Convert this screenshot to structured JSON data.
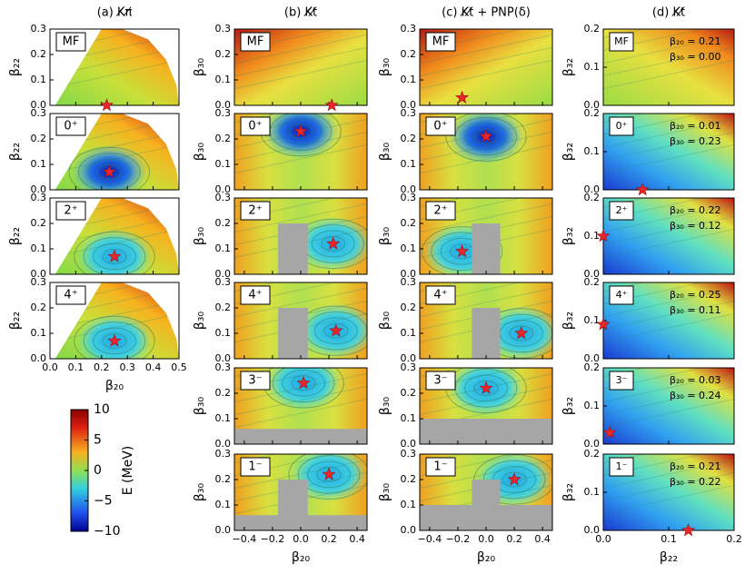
{
  "column_titles": [
    "(a) K̸π̸",
    "(b) K̸t̸",
    "(c) K̸t̸ + PNP(δ)",
    "(d) K̸t̸"
  ],
  "chart_data": [
    {
      "type": "contour",
      "label": "MF",
      "ylabel": "β₂₂",
      "xlim": [
        0,
        0.5
      ],
      "ylim": [
        0,
        0.3
      ],
      "xticks": [
        0,
        0.1,
        0.2,
        0.3,
        0.4,
        0.5
      ],
      "yticks": [
        {
          "value": 0,
          "label": "0.0"
        },
        0.1,
        0.2,
        0.3
      ],
      "star": {
        "x": 0.22,
        "y": 0
      }
    },
    {
      "type": "contour",
      "label": "0⁺",
      "ylabel": "β₂₂",
      "xlim": [
        0,
        0.5
      ],
      "ylim": [
        0,
        0.3
      ],
      "xticks": [
        0,
        0.1,
        0.2,
        0.3,
        0.4,
        0.5
      ],
      "yticks": [
        {
          "value": 0,
          "label": "0.0"
        },
        0.1,
        0.2,
        0.3
      ],
      "star": {
        "x": 0.23,
        "y": 0.07
      }
    },
    {
      "type": "contour",
      "label": "2⁺",
      "ylabel": "β₂₂",
      "xlim": [
        0,
        0.5
      ],
      "ylim": [
        0,
        0.3
      ],
      "xticks": [
        0,
        0.1,
        0.2,
        0.3,
        0.4,
        0.5
      ],
      "yticks": [
        {
          "value": 0,
          "label": "0.0"
        },
        0.1,
        0.2,
        0.3
      ],
      "star": {
        "x": 0.25,
        "y": 0.07
      }
    },
    {
      "type": "contour",
      "label": "4⁺",
      "ylabel": "β₂₂",
      "xlabel": "β₂₀",
      "xlim": [
        0,
        0.5
      ],
      "ylim": [
        0,
        0.3
      ],
      "xticks": [
        {
          "value": 0,
          "label": "0.0"
        },
        0.1,
        0.2,
        0.3,
        0.4,
        0.5
      ],
      "yticks": [
        {
          "value": 0,
          "label": "0.0"
        },
        0.1,
        0.2,
        0.3
      ],
      "star": {
        "x": 0.25,
        "y": 0.07
      }
    },
    {
      "type": "contour",
      "label": "MF",
      "ylabel": "β₃₀",
      "xlim": [
        -0.47,
        0.47
      ],
      "ylim": [
        0,
        0.3
      ],
      "xticks": [
        -0.4,
        -0.2,
        0,
        0.2,
        0.4
      ],
      "yticks": [
        {
          "value": 0,
          "label": "0.0"
        },
        0.1,
        0.2,
        0.3
      ],
      "star": {
        "x": 0.22,
        "y": 0
      }
    },
    {
      "type": "contour",
      "label": "0⁺",
      "ylabel": "β₃₀",
      "xlim": [
        -0.47,
        0.47
      ],
      "ylim": [
        0,
        0.3
      ],
      "xticks": [
        -0.4,
        -0.2,
        0,
        0.2,
        0.4
      ],
      "yticks": [
        {
          "value": 0,
          "label": "0.0"
        },
        0.1,
        0.2,
        0.3
      ],
      "star": {
        "x": 0,
        "y": 0.23
      }
    },
    {
      "type": "contour",
      "label": "2⁺",
      "ylabel": "β₃₀",
      "xlim": [
        -0.47,
        0.47
      ],
      "ylim": [
        0,
        0.3
      ],
      "xticks": [
        -0.4,
        -0.2,
        0,
        0.2,
        0.4
      ],
      "yticks": [
        {
          "value": 0,
          "label": "0.0"
        },
        0.1,
        0.2,
        0.3
      ],
      "star": {
        "x": 0.23,
        "y": 0.12
      }
    },
    {
      "type": "contour",
      "label": "4⁺",
      "ylabel": "β₃₀",
      "xlim": [
        -0.47,
        0.47
      ],
      "ylim": [
        0,
        0.3
      ],
      "xticks": [
        -0.4,
        -0.2,
        0,
        0.2,
        0.4
      ],
      "yticks": [
        {
          "value": 0,
          "label": "0.0"
        },
        0.1,
        0.2,
        0.3
      ],
      "star": {
        "x": 0.25,
        "y": 0.11
      }
    },
    {
      "type": "contour",
      "label": "3⁻",
      "ylabel": "β₃₀",
      "xlim": [
        -0.47,
        0.47
      ],
      "ylim": [
        0,
        0.3
      ],
      "xticks": [
        -0.4,
        -0.2,
        0,
        0.2,
        0.4
      ],
      "yticks": [
        {
          "value": 0,
          "label": "0.0"
        },
        0.1,
        0.2,
        0.3
      ],
      "star": {
        "x": 0.02,
        "y": 0.24
      }
    },
    {
      "type": "contour",
      "label": "1⁻",
      "ylabel": "β₃₀",
      "xlabel": "β₂₀",
      "xlim": [
        -0.47,
        0.47
      ],
      "ylim": [
        0,
        0.3
      ],
      "xticks": [
        {
          "value": -0.4,
          "label": "−0.4"
        },
        {
          "value": -0.2,
          "label": "−0.2"
        },
        {
          "value": 0,
          "label": "0.0"
        },
        0.2,
        0.4
      ],
      "yticks": [
        {
          "value": 0,
          "label": "0.0"
        },
        0.1,
        0.2,
        0.3
      ],
      "star": {
        "x": 0.2,
        "y": 0.22
      }
    },
    {
      "type": "contour",
      "label": "MF",
      "ylabel": "β₃₀",
      "xlim": [
        -0.47,
        0.47
      ],
      "ylim": [
        0,
        0.3
      ],
      "xticks": [
        -0.4,
        -0.2,
        0,
        0.2,
        0.4
      ],
      "yticks": [
        {
          "value": 0,
          "label": "0.0"
        },
        0.1,
        0.2,
        0.3
      ],
      "star": {
        "x": -0.17,
        "y": 0.03
      }
    },
    {
      "type": "contour",
      "label": "0⁺",
      "ylabel": "β₃₀",
      "xlim": [
        -0.47,
        0.47
      ],
      "ylim": [
        0,
        0.3
      ],
      "xticks": [
        -0.4,
        -0.2,
        0,
        0.2,
        0.4
      ],
      "yticks": [
        {
          "value": 0,
          "label": "0.0"
        },
        0.1,
        0.2,
        0.3
      ],
      "star": {
        "x": 0,
        "y": 0.21
      }
    },
    {
      "type": "contour",
      "label": "2⁺",
      "ylabel": "β₃₀",
      "xlim": [
        -0.47,
        0.47
      ],
      "ylim": [
        0,
        0.3
      ],
      "xticks": [
        -0.4,
        -0.2,
        0,
        0.2,
        0.4
      ],
      "yticks": [
        {
          "value": 0,
          "label": "0.0"
        },
        0.1,
        0.2,
        0.3
      ],
      "star": {
        "x": -0.17,
        "y": 0.09
      }
    },
    {
      "type": "contour",
      "label": "4⁺",
      "ylabel": "β₃₀",
      "xlim": [
        -0.47,
        0.47
      ],
      "ylim": [
        0,
        0.3
      ],
      "xticks": [
        -0.4,
        -0.2,
        0,
        0.2,
        0.4
      ],
      "yticks": [
        {
          "value": 0,
          "label": "0.0"
        },
        0.1,
        0.2,
        0.3
      ],
      "star": {
        "x": 0.25,
        "y": 0.1
      }
    },
    {
      "type": "contour",
      "label": "3⁻",
      "ylabel": "β₃₀",
      "xlim": [
        -0.47,
        0.47
      ],
      "ylim": [
        0,
        0.3
      ],
      "xticks": [
        -0.4,
        -0.2,
        0,
        0.2,
        0.4
      ],
      "yticks": [
        {
          "value": 0,
          "label": "0.0"
        },
        0.1,
        0.2,
        0.3
      ],
      "star": {
        "x": 0,
        "y": 0.22
      }
    },
    {
      "type": "contour",
      "label": "1⁻",
      "ylabel": "β₃₀",
      "xlabel": "β₂₀",
      "xlim": [
        -0.47,
        0.47
      ],
      "ylim": [
        0,
        0.3
      ],
      "xticks": [
        {
          "value": -0.4,
          "label": "−0.4"
        },
        {
          "value": -0.2,
          "label": "−0.2"
        },
        {
          "value": 0,
          "label": "0.0"
        },
        0.2,
        0.4
      ],
      "yticks": [
        {
          "value": 0,
          "label": "0.0"
        },
        0.1,
        0.2,
        0.3
      ],
      "star": {
        "x": 0.2,
        "y": 0.2
      }
    },
    {
      "type": "contour",
      "label": "MF",
      "ylabel": "β₃₂",
      "annotations": [
        "β₂₀ = 0.21",
        "β₃₀ = 0.00"
      ],
      "xlim": [
        0,
        0.2
      ],
      "ylim": [
        0,
        0.2
      ],
      "xticks": [
        0,
        0.1,
        0.2
      ],
      "yticks": [
        {
          "value": 0,
          "label": "0.0"
        },
        0.1,
        0.2
      ]
    },
    {
      "type": "contour",
      "label": "0⁺",
      "ylabel": "β₃₂",
      "annotations": [
        "β₂₀ = 0.01",
        "β₃₀ = 0.23"
      ],
      "xlim": [
        0,
        0.2
      ],
      "ylim": [
        0,
        0.2
      ],
      "xticks": [
        0,
        0.1,
        0.2
      ],
      "yticks": [
        {
          "value": 0,
          "label": "0.0"
        },
        0.1,
        0.2
      ],
      "star": {
        "x": 0.06,
        "y": 0
      }
    },
    {
      "type": "contour",
      "label": "2⁺",
      "ylabel": "β₃₂",
      "annotations": [
        "β₂₀ = 0.22",
        "β₃₀ = 0.12"
      ],
      "xlim": [
        0,
        0.2
      ],
      "ylim": [
        0,
        0.2
      ],
      "xticks": [
        0,
        0.1,
        0.2
      ],
      "yticks": [
        {
          "value": 0,
          "label": "0.0"
        },
        0.1,
        0.2
      ],
      "star": {
        "x": 0,
        "y": 0.1
      }
    },
    {
      "type": "contour",
      "label": "4⁺",
      "ylabel": "β₃₂",
      "annotations": [
        "β₂₀ = 0.25",
        "β₃₀ = 0.11"
      ],
      "xlim": [
        0,
        0.2
      ],
      "ylim": [
        0,
        0.2
      ],
      "xticks": [
        0,
        0.1,
        0.2
      ],
      "yticks": [
        {
          "value": 0,
          "label": "0.0"
        },
        0.1,
        0.2
      ],
      "star": {
        "x": 0,
        "y": 0.09
      }
    },
    {
      "type": "contour",
      "label": "3⁻",
      "ylabel": "β₃₂",
      "annotations": [
        "β₂₀ = 0.03",
        "β₃₀ = 0.24"
      ],
      "xlim": [
        0,
        0.2
      ],
      "ylim": [
        0,
        0.2
      ],
      "xticks": [
        0,
        0.1,
        0.2
      ],
      "yticks": [
        {
          "value": 0,
          "label": "0.0"
        },
        0.1,
        0.2
      ],
      "star": {
        "x": 0.01,
        "y": 0.03
      }
    },
    {
      "type": "contour",
      "label": "1⁻",
      "ylabel": "β₃₂",
      "xlabel": "β₂₂",
      "annotations": [
        "β₂₀ = 0.21",
        "β₃₀ = 0.22"
      ],
      "xlim": [
        0,
        0.2
      ],
      "ylim": [
        0,
        0.2
      ],
      "xticks": [
        {
          "value": 0,
          "label": "0.0"
        },
        0.1,
        0.2
      ],
      "yticks": [
        {
          "value": 0,
          "label": "0.0"
        },
        0.1,
        0.2
      ],
      "star": {
        "x": 0.13,
        "y": 0
      }
    },
    {
      "type": "colorbar",
      "ylabel": "E (MeV)",
      "ylim": [
        -10,
        10
      ],
      "yticks": [
        {
          "value": -10,
          "label": "−10"
        },
        {
          "value": -5,
          "label": "−5"
        },
        0,
        5,
        10
      ]
    }
  ]
}
